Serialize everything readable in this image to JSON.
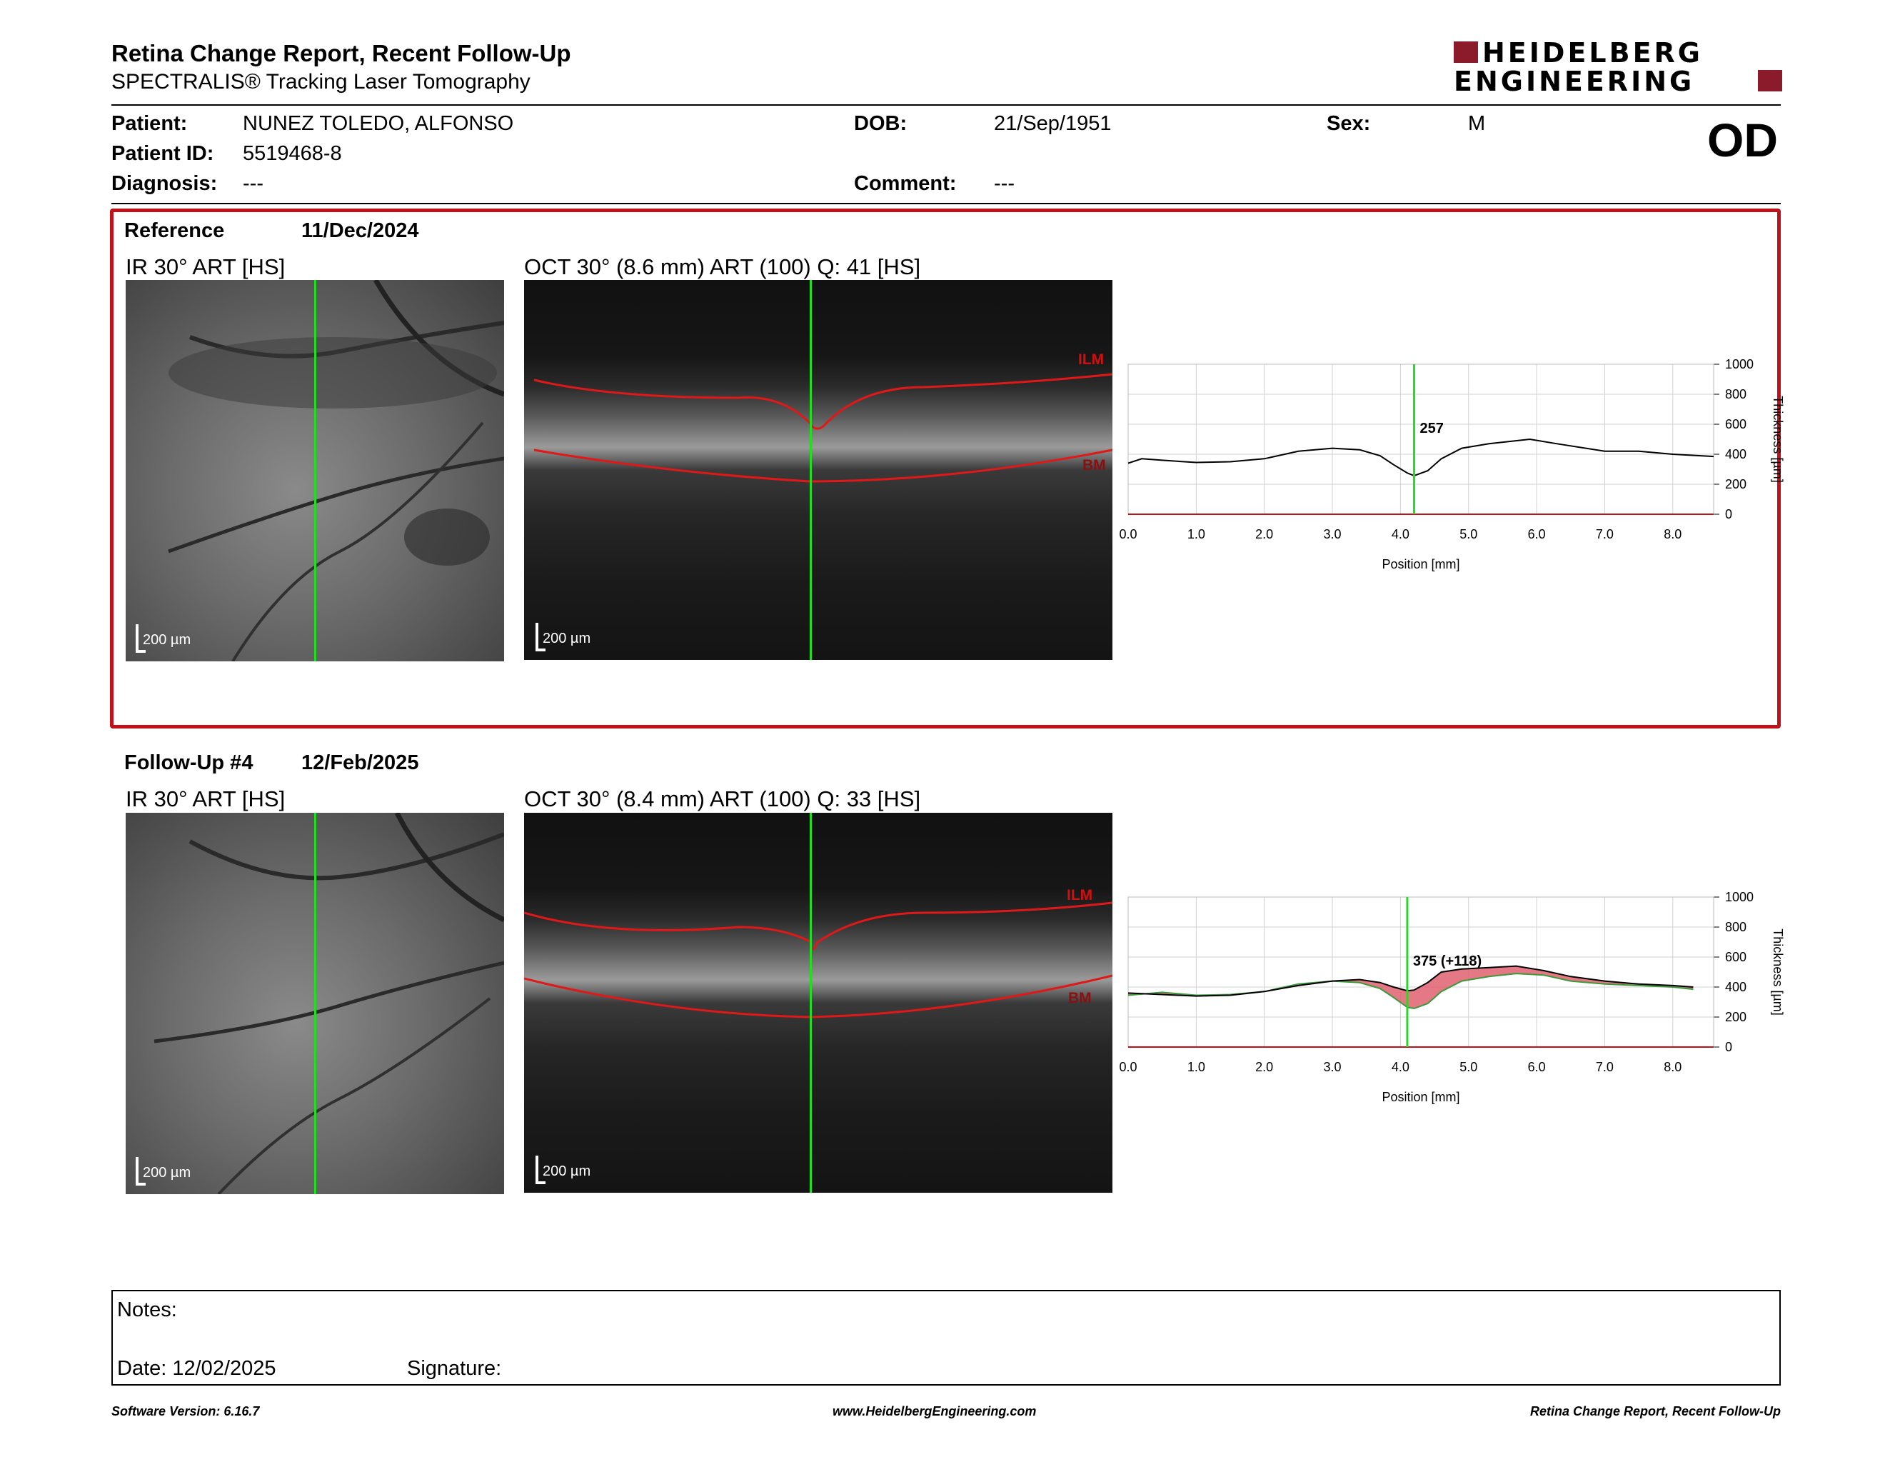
{
  "header": {
    "title": "Retina Change Report, Recent Follow-Up",
    "subtitle": "SPECTRALIS® Tracking Laser Tomography",
    "logo_line1": "HEIDELBERG",
    "logo_line2": "ENGINEERING",
    "eye": "OD"
  },
  "patient": {
    "patient_label": "Patient:",
    "patient_value": "NUNEZ TOLEDO, ALFONSO",
    "id_label": "Patient ID:",
    "id_value": "5519468-8",
    "diagnosis_label": "Diagnosis:",
    "diagnosis_value": "---",
    "dob_label": "DOB:",
    "dob_value": "21/Sep/1951",
    "comment_label": "Comment:",
    "comment_value": "---",
    "sex_label": "Sex:",
    "sex_value": "M"
  },
  "reference": {
    "label": "Reference",
    "date": "11/Dec/2024",
    "ir_label": "IR 30° ART [HS]",
    "oct_label": "OCT 30° (8.6 mm) ART (100) Q: 41 [HS]",
    "scale_ir": "200 µm",
    "scale_oct": "200 µm",
    "ilm": "ILM",
    "bm": "BM"
  },
  "followup": {
    "label": "Follow-Up #4",
    "date": "12/Feb/2025",
    "ir_label": "IR 30° ART [HS]",
    "oct_label": "OCT 30° (8.4 mm) ART (100) Q: 33 [HS]",
    "scale_ir": "200 µm",
    "scale_oct": "200 µm",
    "ilm": "ILM",
    "bm": "BM"
  },
  "chart_data": [
    {
      "type": "line",
      "xlabel": "Position [mm]",
      "ylabel": "Thickness [µm]",
      "xlim": [
        0,
        8.6
      ],
      "ylim": [
        0,
        1000
      ],
      "xticks": [
        "0.0",
        "1.0",
        "2.0",
        "3.0",
        "4.0",
        "5.0",
        "6.0",
        "7.0",
        "8.0"
      ],
      "yticks": [
        "0",
        "200",
        "400",
        "600",
        "800",
        "1000"
      ],
      "marker_x": 4.2,
      "marker_label": "257",
      "series": [
        {
          "x": [
            0.0,
            0.2,
            0.5,
            1.0,
            1.5,
            2.0,
            2.5,
            3.0,
            3.4,
            3.7,
            3.9,
            4.1,
            4.2,
            4.4,
            4.6,
            4.9,
            5.3,
            5.9,
            6.3,
            7.0,
            7.5,
            8.0,
            8.6
          ],
          "y": [
            340,
            370,
            360,
            345,
            350,
            370,
            420,
            440,
            430,
            390,
            330,
            275,
            257,
            290,
            370,
            440,
            470,
            500,
            470,
            420,
            420,
            400,
            385
          ]
        }
      ]
    },
    {
      "type": "area",
      "xlabel": "Position [mm]",
      "ylabel": "Thickness [µm]",
      "xlim": [
        0,
        8.6
      ],
      "ylim": [
        0,
        1000
      ],
      "xticks": [
        "0.0",
        "1.0",
        "2.0",
        "3.0",
        "4.0",
        "5.0",
        "6.0",
        "7.0",
        "8.0"
      ],
      "yticks": [
        "0",
        "200",
        "400",
        "600",
        "800",
        "1000"
      ],
      "marker_x": 4.1,
      "marker_label": "375 (+118)",
      "series": [
        {
          "x": [
            0.0,
            0.5,
            1.0,
            1.5,
            2.0,
            2.5,
            3.0,
            3.4,
            3.7,
            3.9,
            4.1,
            4.2,
            4.4,
            4.6,
            4.9,
            5.3,
            5.7,
            6.1,
            6.5,
            7.0,
            7.5,
            8.0,
            8.3
          ],
          "y": [
            360,
            350,
            340,
            345,
            370,
            410,
            440,
            450,
            430,
            400,
            375,
            380,
            430,
            500,
            520,
            530,
            540,
            510,
            470,
            440,
            420,
            410,
            400
          ]
        },
        {
          "x": [
            0.0,
            0.5,
            1.0,
            1.5,
            2.0,
            2.5,
            3.0,
            3.4,
            3.7,
            3.9,
            4.1,
            4.2,
            4.4,
            4.6,
            4.9,
            5.3,
            5.7,
            6.1,
            6.5,
            7.0,
            7.5,
            8.0,
            8.3
          ],
          "y": [
            345,
            365,
            345,
            350,
            370,
            420,
            440,
            430,
            390,
            330,
            265,
            257,
            290,
            370,
            440,
            470,
            490,
            480,
            440,
            420,
            410,
            400,
            385
          ]
        }
      ]
    }
  ],
  "notes": {
    "notes_label": "Notes:",
    "date_label": "Date: 12/02/2025",
    "signature_label": "Signature:"
  },
  "footer": {
    "software": "Software Version: 6.16.7",
    "website": "www.HeidelbergEngineering.com",
    "report": "Retina Change Report, Recent Follow-Up"
  },
  "colors": {
    "frame_red": "#c0101a",
    "brand": "#8b1a2b",
    "scan_line": "#1fe01f",
    "change_fill": "#e06070"
  }
}
